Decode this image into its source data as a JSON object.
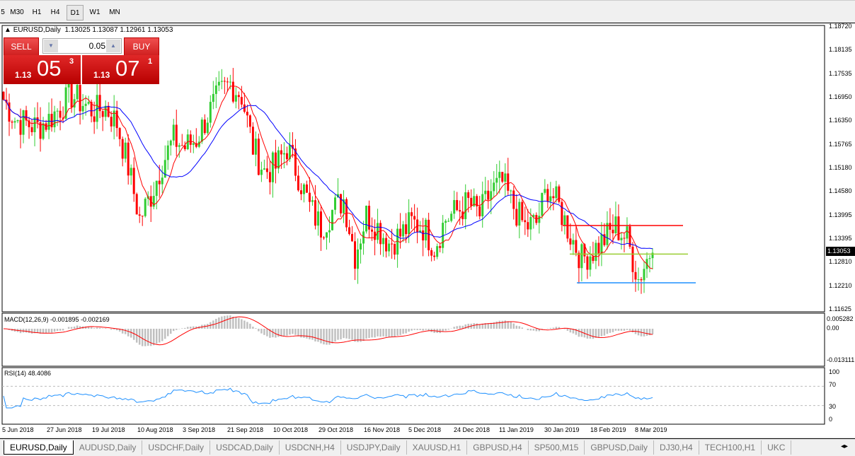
{
  "timeframes": [
    "5",
    "M30",
    "H1",
    "H4",
    "D1",
    "W1",
    "MN"
  ],
  "active_timeframe": "D1",
  "header": {
    "symbol": "EURUSD,Daily",
    "ohlc": "1.13025 1.13087 1.12961 1.13053"
  },
  "trade_panel": {
    "sell_label": "SELL",
    "buy_label": "BUY",
    "lot": "0.05",
    "sell": {
      "prefix": "1.13",
      "big": "05",
      "sup": "3"
    },
    "buy": {
      "prefix": "1.13",
      "big": "07",
      "sup": "1"
    }
  },
  "price_axis": [
    "1.18720",
    "1.18135",
    "1.17535",
    "1.16950",
    "1.16350",
    "1.15765",
    "1.15180",
    "1.14580",
    "1.13995",
    "1.13395",
    "1.12810",
    "1.12210",
    "1.11625"
  ],
  "last_price": "1.13053",
  "macd": {
    "label": "MACD(12,26,9) -0.001895 -0.002169",
    "axis": [
      "0.005282",
      "0.00",
      "-0.013111"
    ]
  },
  "rsi": {
    "label": "RSI(14) 48.4086",
    "axis": [
      "100",
      "70",
      "30",
      "0"
    ]
  },
  "time_axis": [
    "5 Jun 2018",
    "27 Jun 2018",
    "19 Jul 2018",
    "10 Aug 2018",
    "3 Sep 2018",
    "21 Sep 2018",
    "10 Oct 2018",
    "29 Oct 2018",
    "16 Nov 2018",
    "5 Dec 2018",
    "24 Dec 2018",
    "11 Jan 2019",
    "30 Jan 2019",
    "18 Feb 2019",
    "8 Mar 2019"
  ],
  "tabs": [
    "EURUSD,Daily",
    "AUDUSD,Daily",
    "USDCHF,Daily",
    "USDCAD,Daily",
    "USDCNH,H4",
    "USDJPY,Daily",
    "XAUUSD,H1",
    "GBPUSD,H4",
    "SP500,M15",
    "GBPUSD,Daily",
    "DJ30,H4",
    "TECH100,H1",
    "UKC"
  ],
  "active_tab": "EURUSD,Daily",
  "chart_data": {
    "type": "candlestick",
    "price_range": [
      1.11625,
      1.1872
    ],
    "approx_closes": [
      1.169,
      1.164,
      1.163,
      1.162,
      1.164,
      1.167,
      1.17,
      1.168,
      1.166,
      1.167,
      1.163,
      1.152,
      1.139,
      1.145,
      1.153,
      1.159,
      1.157,
      1.159,
      1.165,
      1.17,
      1.173,
      1.17,
      1.157,
      1.151,
      1.152,
      1.157,
      1.15,
      1.142,
      1.137,
      1.141,
      1.144,
      1.13,
      1.14,
      1.137,
      1.133,
      1.135,
      1.138,
      1.137,
      1.132,
      1.139,
      1.141,
      1.143,
      1.14,
      1.146,
      1.148,
      1.142,
      1.137,
      1.138,
      1.147,
      1.142,
      1.135,
      1.129,
      1.131,
      1.134,
      1.137,
      1.134,
      1.124,
      1.13053
    ],
    "horizontal_lines": [
      {
        "price": 1.13735,
        "color": "#ff0000"
      },
      {
        "price": 1.1302,
        "color": "#9acd32"
      },
      {
        "price": 1.123,
        "color": "#1e90ff"
      }
    ],
    "colors": {
      "bull": "#32cd32",
      "bear": "#ff0000",
      "ma_fast": "#ff0000",
      "ma_slow": "#0000ff",
      "rsi": "#1e90ff",
      "macd_hist": "#c0c0c0",
      "macd_signal": "#ff0000"
    }
  }
}
